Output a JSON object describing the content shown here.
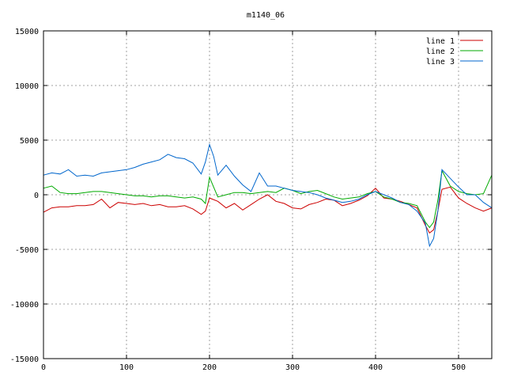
{
  "chart_data": {
    "type": "line",
    "title": "m1140_06",
    "xlabel": "",
    "ylabel": "",
    "xlim": [
      0,
      540
    ],
    "ylim": [
      -15000,
      15000
    ],
    "x_ticks": [
      0,
      100,
      200,
      300,
      400,
      500
    ],
    "y_ticks": [
      -15000,
      -10000,
      -5000,
      0,
      5000,
      10000,
      15000
    ],
    "grid": true,
    "legend_position": "top-right",
    "series": [
      {
        "name": "line 1",
        "color": "#cc0000",
        "x": [
          0,
          10,
          20,
          30,
          40,
          50,
          60,
          70,
          80,
          90,
          100,
          110,
          120,
          130,
          140,
          150,
          160,
          170,
          180,
          190,
          195,
          200,
          210,
          220,
          230,
          240,
          250,
          260,
          270,
          280,
          290,
          300,
          310,
          320,
          330,
          340,
          350,
          360,
          370,
          380,
          390,
          400,
          410,
          420,
          430,
          440,
          450,
          460,
          465,
          470,
          475,
          480,
          490,
          500,
          510,
          520,
          530,
          540
        ],
        "y": [
          -1600,
          -1200,
          -1100,
          -1100,
          -1000,
          -1000,
          -900,
          -400,
          -1200,
          -700,
          -800,
          -900,
          -800,
          -1000,
          -900,
          -1100,
          -1100,
          -1000,
          -1300,
          -1800,
          -1500,
          -300,
          -600,
          -1200,
          -800,
          -1400,
          -900,
          -400,
          0,
          -600,
          -800,
          -1200,
          -1300,
          -900,
          -700,
          -400,
          -500,
          -1000,
          -800,
          -500,
          -100,
          600,
          -300,
          -400,
          -600,
          -900,
          -1200,
          -2800,
          -3500,
          -3200,
          -1500,
          500,
          700,
          -300,
          -800,
          -1200,
          -1500,
          -1200
        ]
      },
      {
        "name": "line 2",
        "color": "#00aa00",
        "x": [
          0,
          10,
          20,
          30,
          40,
          50,
          60,
          70,
          80,
          90,
          100,
          110,
          120,
          130,
          140,
          150,
          160,
          170,
          180,
          190,
          195,
          200,
          210,
          220,
          230,
          240,
          250,
          260,
          270,
          280,
          290,
          300,
          310,
          320,
          330,
          340,
          350,
          360,
          370,
          380,
          390,
          400,
          410,
          420,
          430,
          440,
          450,
          460,
          465,
          470,
          475,
          480,
          490,
          500,
          510,
          520,
          530,
          540
        ],
        "y": [
          600,
          800,
          200,
          100,
          100,
          200,
          300,
          300,
          200,
          100,
          0,
          -100,
          -100,
          -200,
          -100,
          -100,
          -200,
          -300,
          -200,
          -400,
          -800,
          1600,
          -200,
          0,
          200,
          200,
          100,
          200,
          300,
          200,
          600,
          400,
          100,
          300,
          400,
          100,
          -200,
          -400,
          -300,
          -200,
          100,
          300,
          -200,
          -400,
          -700,
          -800,
          -1000,
          -2500,
          -3000,
          -2500,
          -500,
          2200,
          800,
          300,
          100,
          0,
          100,
          1800
        ]
      },
      {
        "name": "line 3",
        "color": "#0066cc",
        "x": [
          0,
          10,
          20,
          30,
          40,
          50,
          60,
          70,
          80,
          90,
          100,
          110,
          120,
          130,
          140,
          150,
          160,
          170,
          180,
          190,
          195,
          200,
          205,
          210,
          220,
          230,
          240,
          250,
          260,
          270,
          280,
          290,
          300,
          310,
          320,
          330,
          340,
          350,
          360,
          370,
          380,
          390,
          400,
          410,
          420,
          430,
          440,
          450,
          460,
          465,
          470,
          475,
          480,
          490,
          500,
          510,
          520,
          530,
          540
        ],
        "y": [
          1800,
          2000,
          1900,
          2300,
          1700,
          1800,
          1700,
          2000,
          2100,
          2200,
          2300,
          2500,
          2800,
          3000,
          3200,
          3700,
          3400,
          3300,
          2900,
          1900,
          3000,
          4600,
          3500,
          1800,
          2700,
          1700,
          900,
          300,
          2000,
          800,
          800,
          600,
          400,
          300,
          200,
          0,
          -300,
          -500,
          -700,
          -600,
          -400,
          0,
          300,
          0,
          -300,
          -700,
          -900,
          -1500,
          -2600,
          -4700,
          -4000,
          -1500,
          2300,
          1500,
          700,
          0,
          0,
          -700,
          -1200
        ]
      }
    ]
  }
}
